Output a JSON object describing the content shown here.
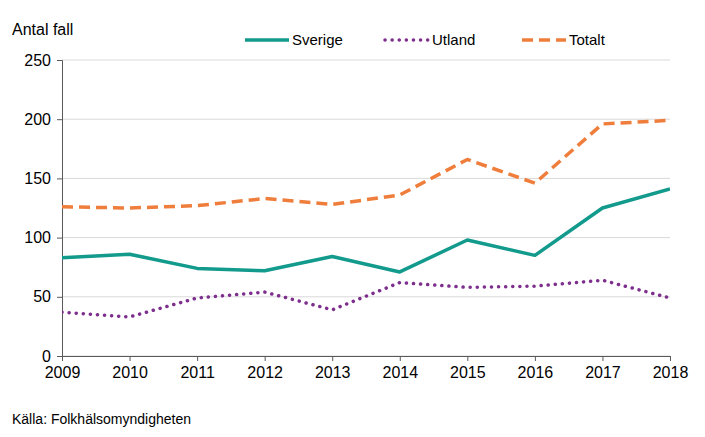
{
  "chart_data": {
    "type": "line",
    "y_label": "Antal fall",
    "source": "Källa: Folkhälsomyndigheten",
    "x": [
      2009,
      2010,
      2011,
      2012,
      2013,
      2014,
      2015,
      2016,
      2017,
      2018
    ],
    "xlim": [
      2009,
      2018
    ],
    "xticks": [
      2009,
      2010,
      2011,
      2012,
      2013,
      2014,
      2015,
      2016,
      2017,
      2018
    ],
    "ylim": [
      0,
      250
    ],
    "yticks": [
      0,
      50,
      100,
      150,
      200,
      250
    ],
    "grid": true,
    "legend": "top",
    "series": [
      {
        "name": "Sverige",
        "color": "#129a8c",
        "line_style": "solid",
        "values": [
          83,
          86,
          74,
          72,
          84,
          71,
          98,
          85,
          125,
          141
        ]
      },
      {
        "name": "Utland",
        "color": "#7e2f8e",
        "line_style": "dotted",
        "values": [
          37,
          33,
          49,
          54,
          39,
          62,
          58,
          59,
          64,
          49
        ]
      },
      {
        "name": "Totalt",
        "color": "#ef7d3b",
        "line_style": "dashed",
        "values": [
          126,
          125,
          127,
          133,
          128,
          136,
          166,
          146,
          196,
          199
        ]
      }
    ]
  }
}
